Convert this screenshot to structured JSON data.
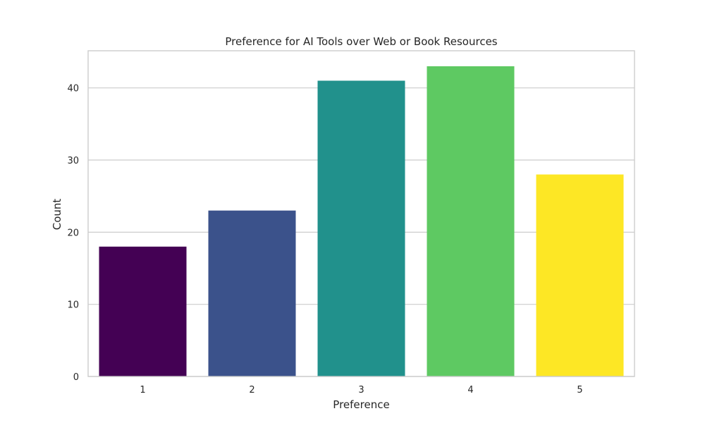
{
  "chart_data": {
    "type": "bar",
    "title": "Preference for AI Tools over Web or Book Resources",
    "xlabel": "Preference",
    "ylabel": "Count",
    "categories": [
      "1",
      "2",
      "3",
      "4",
      "5"
    ],
    "values": [
      18,
      23,
      41,
      43,
      28
    ],
    "colors": [
      "#440154",
      "#3b528b",
      "#21918c",
      "#5ec962",
      "#fde725"
    ],
    "ylim": [
      0,
      45.15
    ],
    "yticks": [
      0,
      10,
      20,
      30,
      40
    ],
    "grid": "horizontal",
    "legend": "none"
  }
}
